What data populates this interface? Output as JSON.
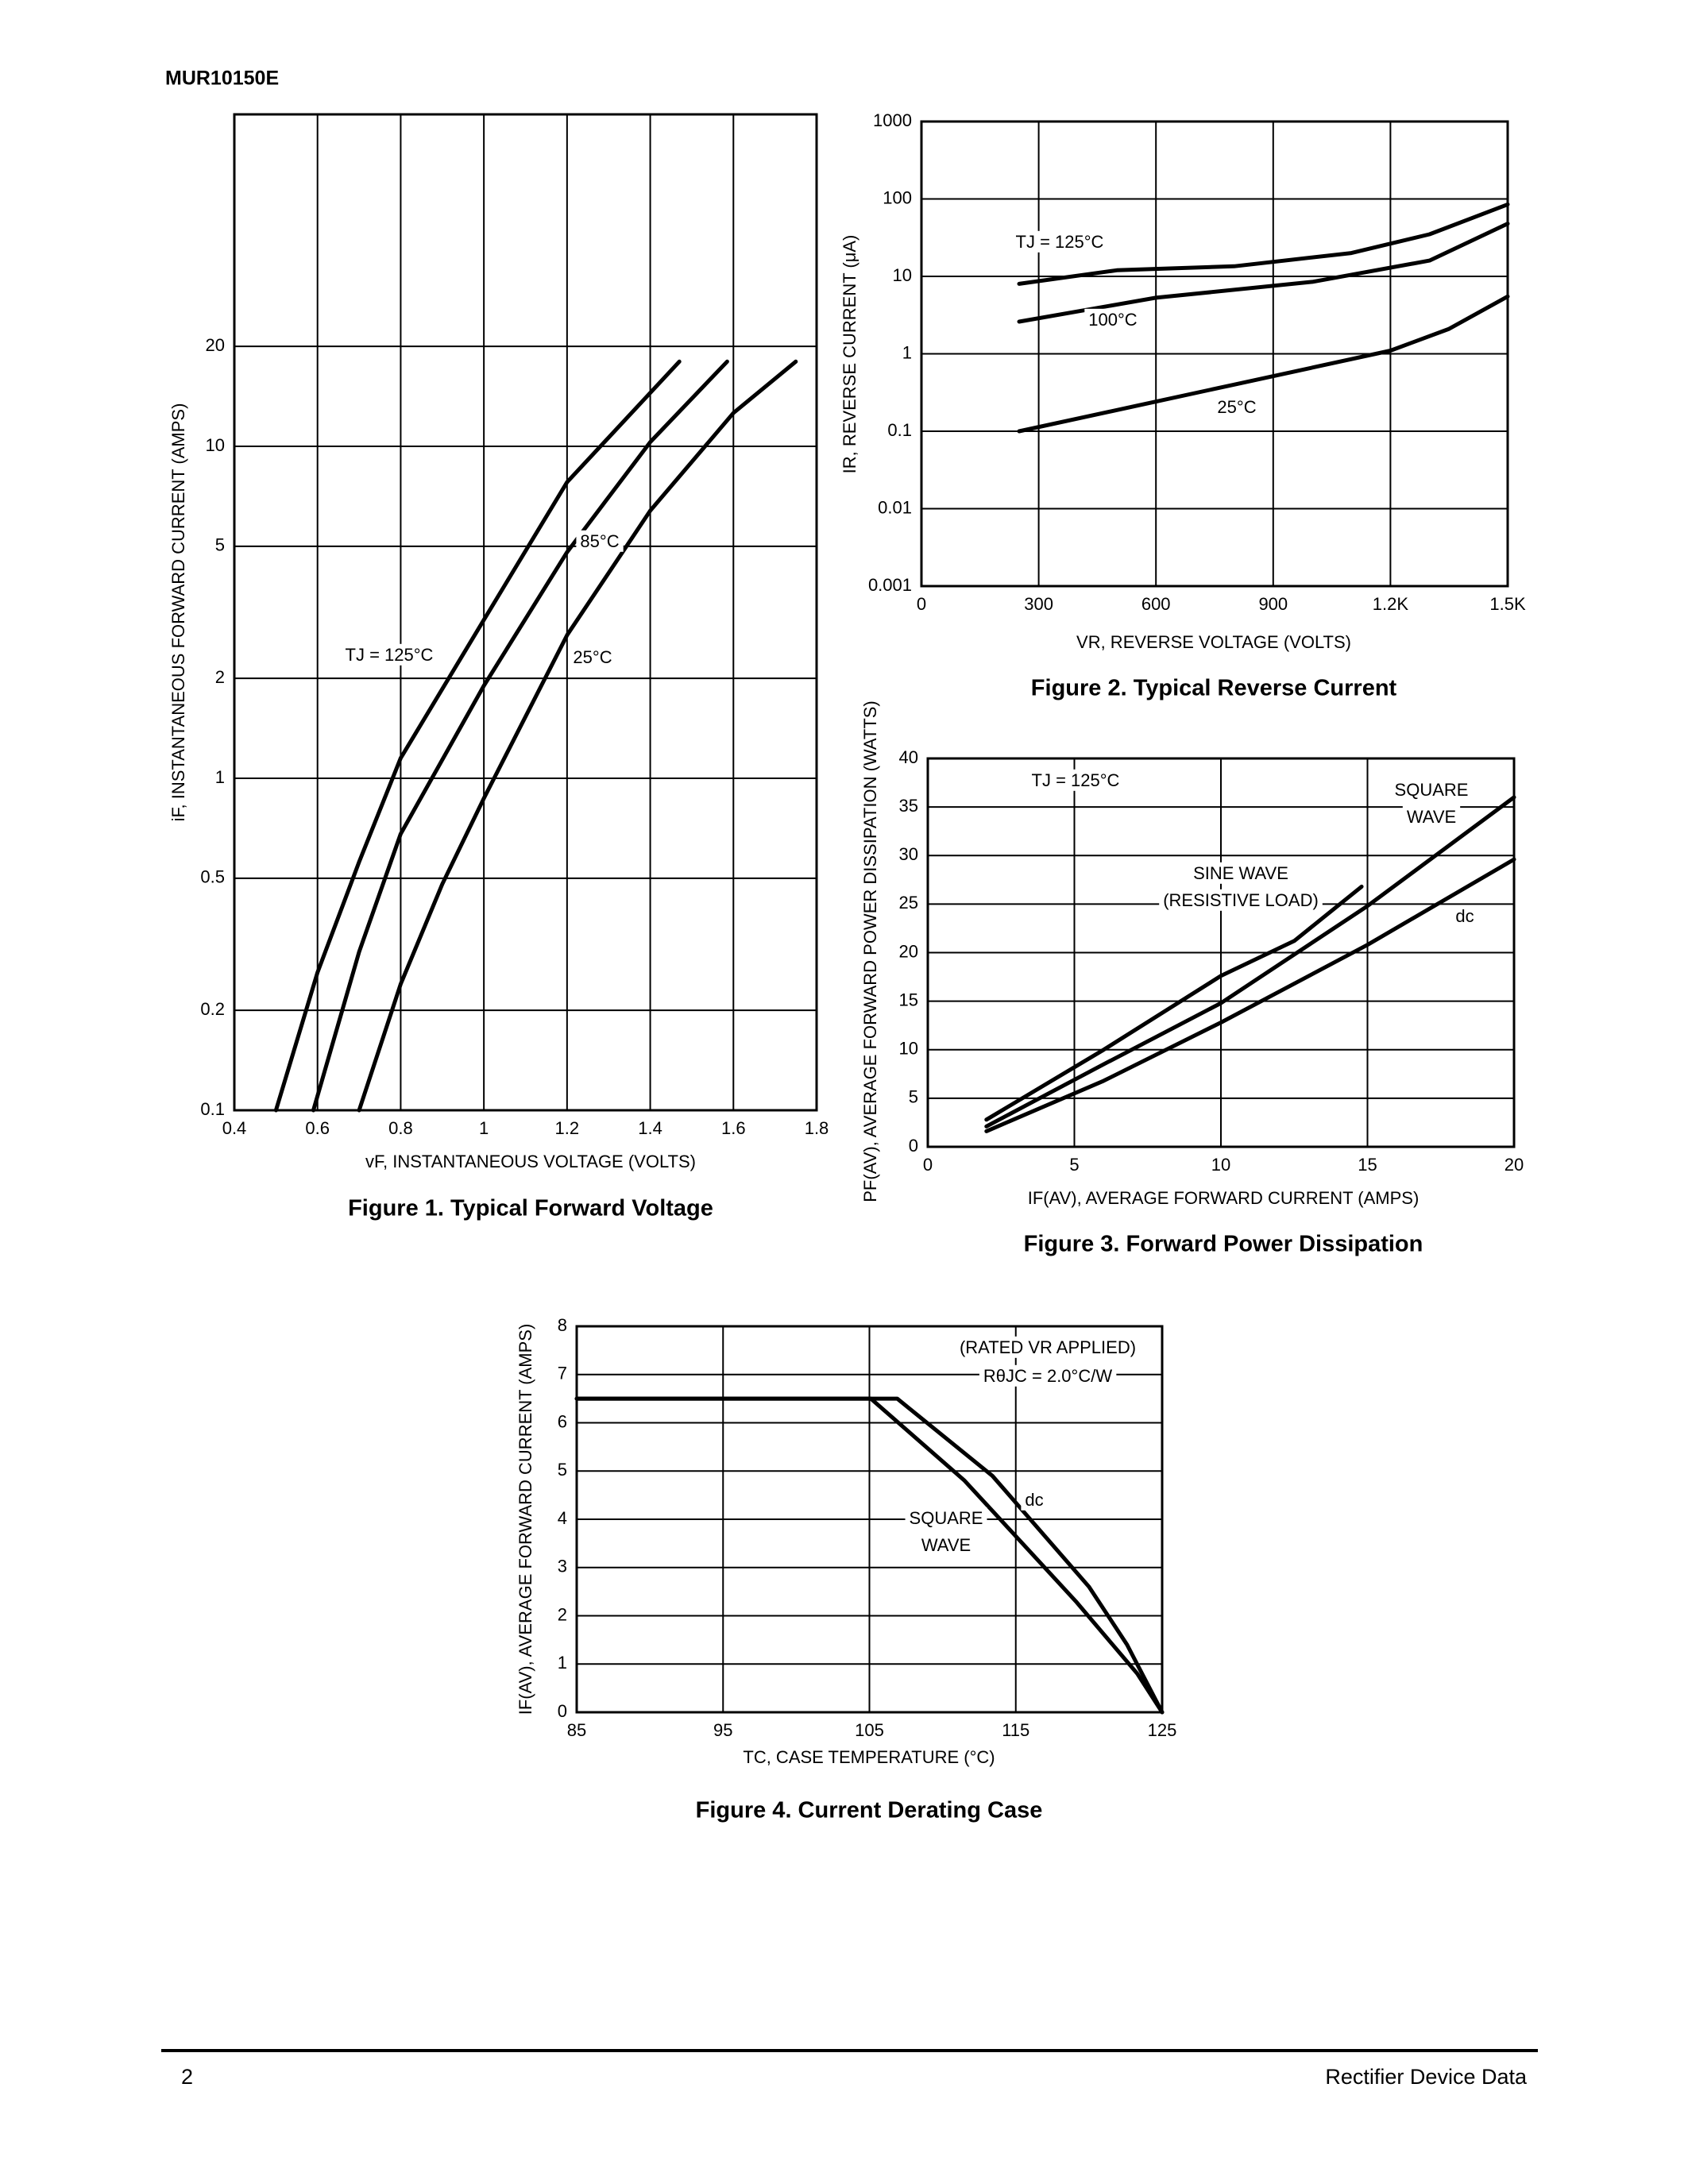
{
  "header": {
    "part": "MUR10150E"
  },
  "footer": {
    "page": "2",
    "text": "Rectifier Device Data"
  },
  "chart_data": [
    {
      "type": "line",
      "title": "Figure 1. Typical Forward Voltage",
      "xlabel": "vF, INSTANTANEOUS VOLTAGE (VOLTS)",
      "ylabel": "iF, INSTANTANEOUS FORWARD CURRENT (AMPS)",
      "xlim": [
        0.4,
        1.8
      ],
      "xticks": [
        0.4,
        0.6,
        0.8,
        1,
        1.2,
        1.4,
        1.6,
        1.8
      ],
      "ylim": [
        0.1,
        100
      ],
      "yticks": [
        0.1,
        0.2,
        0.5,
        1,
        2,
        5,
        10,
        20
      ],
      "ylog": true,
      "grid": true,
      "series": [
        {
          "name": "TJ = 125°C",
          "color": "#000000",
          "x": [
            0.5,
            0.6,
            0.7,
            0.8,
            1.0,
            1.2,
            1.47
          ],
          "values": [
            0.1,
            0.26,
            0.56,
            1.15,
            3.0,
            7.8,
            18
          ]
        },
        {
          "name": "85°C",
          "color": "#000000",
          "x": [
            0.59,
            0.7,
            0.8,
            1.0,
            1.2,
            1.4,
            1.585
          ],
          "values": [
            0.1,
            0.3,
            0.68,
            1.9,
            4.8,
            10.3,
            18
          ]
        },
        {
          "name": "25°C",
          "color": "#000000",
          "x": [
            0.7,
            0.8,
            0.9,
            1.0,
            1.2,
            1.4,
            1.6,
            1.75
          ],
          "values": [
            0.1,
            0.24,
            0.48,
            0.87,
            2.7,
            6.4,
            12.6,
            18
          ]
        }
      ]
    },
    {
      "type": "line",
      "title": "Figure 2. Typical Reverse Current",
      "xlabel": "VR, REVERSE VOLTAGE (VOLTS)",
      "ylabel": "IR, REVERSE CURRENT (μA)",
      "xlim": [
        0,
        1500
      ],
      "xticks": [
        0,
        300,
        600,
        900,
        {
          "value": 1200,
          "label": "1.2K"
        },
        {
          "value": 1500,
          "label": "1.5K"
        }
      ],
      "ylim": [
        0.001,
        1000
      ],
      "yticks": [
        0.001,
        0.01,
        0.1,
        1,
        10,
        100,
        1000
      ],
      "ylog": true,
      "grid": true,
      "series": [
        {
          "name": "TJ = 125°C",
          "color": "#000000",
          "x": [
            250,
            500,
            800,
            1100,
            1300,
            1500
          ],
          "values": [
            8,
            12,
            13.5,
            20,
            35,
            85
          ]
        },
        {
          "name": "100°C",
          "color": "#000000",
          "x": [
            250,
            600,
            1000,
            1300,
            1500
          ],
          "values": [
            2.6,
            5.3,
            8.5,
            16,
            48
          ]
        },
        {
          "name": "25°C",
          "color": "#000000",
          "x": [
            250,
            800,
            1200,
            1350,
            1500
          ],
          "values": [
            0.1,
            0.4,
            1.1,
            2.1,
            5.5
          ]
        }
      ]
    },
    {
      "type": "line",
      "title": "Figure 3. Forward Power Dissipation",
      "xlabel": "IF(AV), AVERAGE FORWARD CURRENT (AMPS)",
      "ylabel": "PF(AV), AVERAGE FORWARD POWER DISSIPATION (WATTS)",
      "xlim": [
        0,
        20
      ],
      "xticks": [
        0,
        5,
        10,
        15,
        20
      ],
      "ylim": [
        0,
        40
      ],
      "yticks": [
        0,
        5,
        10,
        15,
        20,
        25,
        30,
        35,
        40
      ],
      "ylog": false,
      "grid": true,
      "annotations": [
        "TJ = 125°C"
      ],
      "series": [
        {
          "name": [
            "SINE WAVE",
            "(RESISTIVE LOAD)"
          ],
          "color": "#000000",
          "x": [
            2,
            6,
            10,
            12.5,
            14.8
          ],
          "values": [
            2.8,
            10,
            17.6,
            21.2,
            26.8
          ]
        },
        {
          "name": [
            "SQUARE",
            "WAVE"
          ],
          "color": "#000000",
          "x": [
            2,
            6,
            10,
            15,
            20
          ],
          "values": [
            2.1,
            8.5,
            14.8,
            24.8,
            36
          ]
        },
        {
          "name": "dc",
          "color": "#000000",
          "x": [
            2,
            6,
            10,
            15,
            20
          ],
          "values": [
            1.6,
            6.8,
            12.8,
            20.8,
            29.6
          ]
        }
      ]
    },
    {
      "type": "line",
      "title": "Figure 4. Current Derating Case",
      "xlabel": "TC, CASE TEMPERATURE (°C)",
      "ylabel": "IF(AV), AVERAGE FORWARD CURRENT (AMPS)",
      "xlim": [
        85,
        125
      ],
      "xticks": [
        85,
        95,
        105,
        115,
        125
      ],
      "ylim": [
        0,
        8
      ],
      "yticks": [
        0,
        1,
        2,
        3,
        4,
        5,
        6,
        7,
        8
      ],
      "ylog": false,
      "grid": true,
      "annotations": [
        "(RATED VR APPLIED)",
        "RθJC = 2.0°C/W"
      ],
      "series": [
        {
          "name": [
            "SQUARE",
            "WAVE"
          ],
          "color": "#000000",
          "x": [
            85,
            105.1,
            111.5,
            119.1,
            123.3,
            125
          ],
          "values": [
            6.5,
            6.5,
            4.8,
            2.3,
            0.8,
            0
          ]
        },
        {
          "name": "dc",
          "color": "#000000",
          "x": [
            85,
            106.9,
            113.4,
            120,
            122.6,
            125
          ],
          "values": [
            6.5,
            6.5,
            4.9,
            2.6,
            1.4,
            0
          ]
        }
      ]
    }
  ]
}
